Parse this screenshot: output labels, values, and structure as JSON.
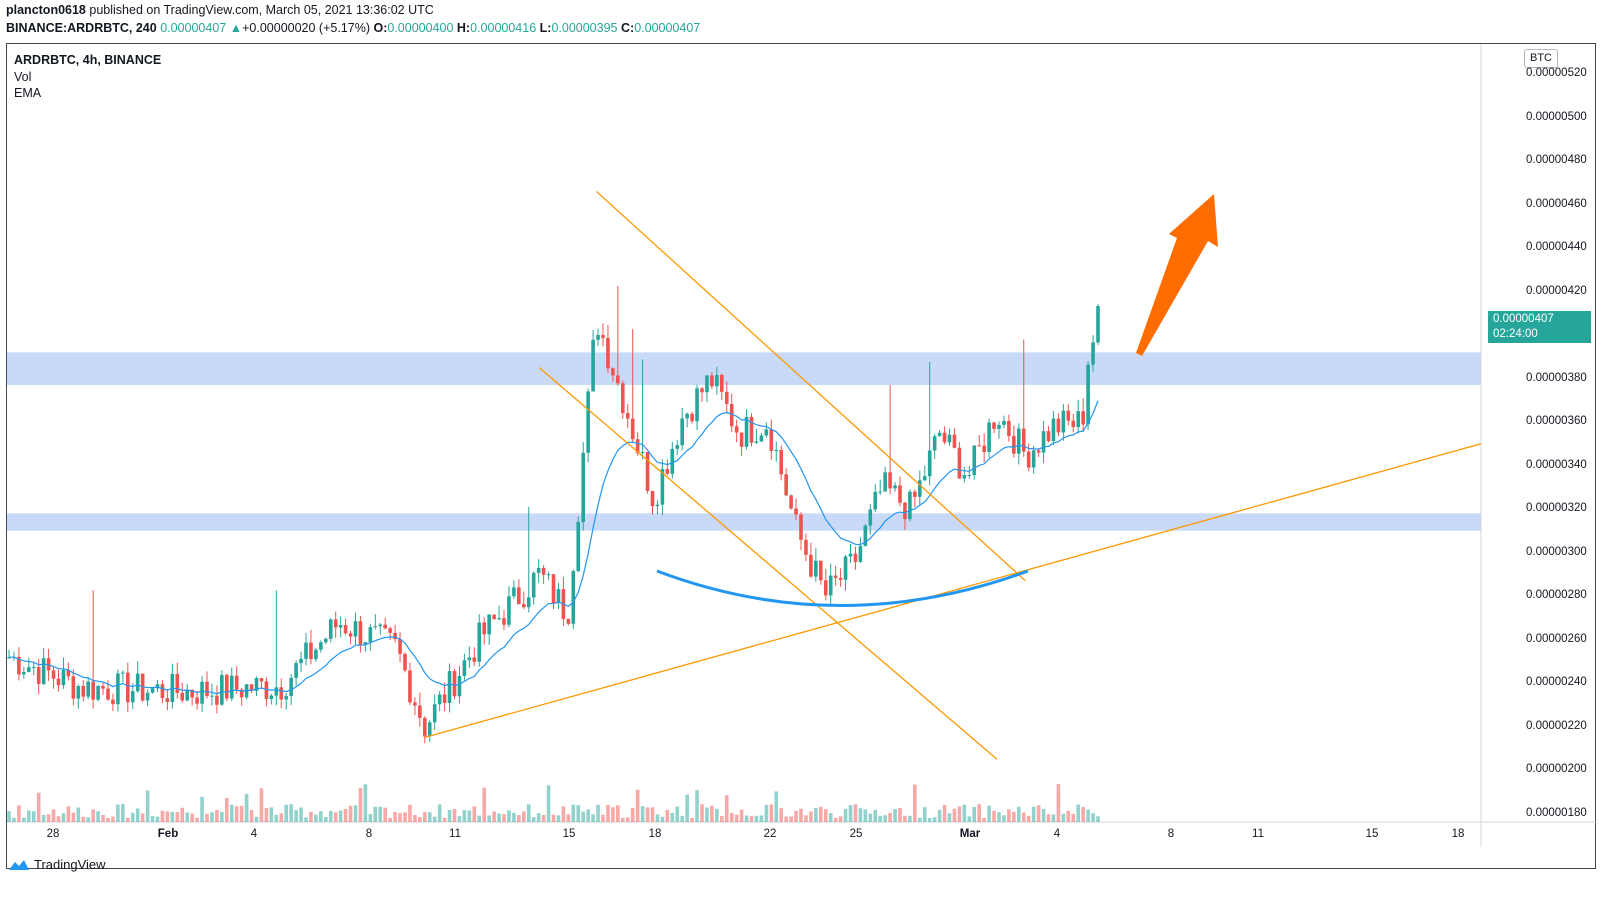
{
  "header": {
    "author": "plancton0618",
    "published": "published on TradingView.com, March 05, 2021 13:36:02 UTC",
    "symbol": "BINANCE:ARDRBTC, 240",
    "last": "0.00000407",
    "change": "+0.00000020 (+5.17%)",
    "o_label": "O:",
    "o_value": "0.00000400",
    "h_label": "H:",
    "h_value": "0.00000416",
    "l_label": "L:",
    "l_value": "0.00000395",
    "c_label": "C:",
    "c_value": "0.00000407"
  },
  "legend": {
    "symbol": "ARDRBTC, 4h, BINANCE",
    "vol": "Vol",
    "ema": "EMA"
  },
  "price_axis": {
    "unit": "BTC",
    "ticks": [
      "0.00000520",
      "0.00000500",
      "0.00000480",
      "0.00000460",
      "0.00000440",
      "0.00000420",
      "0.00000380",
      "0.00000360",
      "0.00000340",
      "0.00000320",
      "0.00000300",
      "0.00000280",
      "0.00000260",
      "0.00000240",
      "0.00000220",
      "0.00000200",
      "0.00000180"
    ],
    "current_price": "0.00000407",
    "countdown": "02:24:00"
  },
  "time_axis": {
    "ticks": [
      {
        "label": "28",
        "bold": false
      },
      {
        "label": "Feb",
        "bold": true
      },
      {
        "label": "4",
        "bold": false
      },
      {
        "label": "8",
        "bold": false
      },
      {
        "label": "11",
        "bold": false
      },
      {
        "label": "15",
        "bold": false
      },
      {
        "label": "18",
        "bold": false
      },
      {
        "label": "22",
        "bold": false
      },
      {
        "label": "25",
        "bold": false
      },
      {
        "label": "Mar",
        "bold": true
      },
      {
        "label": "4",
        "bold": false
      },
      {
        "label": "8",
        "bold": false
      },
      {
        "label": "11",
        "bold": false
      },
      {
        "label": "15",
        "bold": false
      },
      {
        "label": "18",
        "bold": false
      }
    ]
  },
  "footer": {
    "brand": "TradingView"
  },
  "colors": {
    "up": "#26a69a",
    "down": "#ef5350",
    "ema": "#2196f3",
    "trend": "#ff9800",
    "zone": "#bbd1f7",
    "arrow": "#ff6d00",
    "curve": "#2196f3"
  },
  "chart_data": {
    "type": "candlestick",
    "ylim": [
      1.78e-06,
      5.3e-06
    ],
    "zones": [
      [
        3.77e-06,
        3.92e-06
      ],
      [
        3.1e-06,
        3.18e-06
      ]
    ],
    "trendlines": [
      {
        "from": [
          "Feb 9",
          2.15e-06
        ],
        "to": [
          "Mar 18+",
          3.5e-06
        ]
      },
      {
        "from": [
          "Feb 15",
          4.66e-06
        ],
        "to": [
          "Mar 2",
          2.87e-06
        ]
      },
      {
        "from": [
          "Feb 13",
          3.85e-06
        ],
        "to": [
          "Feb 29",
          2.05e-06
        ]
      }
    ],
    "anchors": [
      {
        "date": "Jan 26",
        "price": 2.52e-06
      },
      {
        "date": "Jan 29",
        "price": 2.38e-06
      },
      {
        "date": "Feb 1",
        "price": 2.36e-06
      },
      {
        "date": "Feb 4",
        "price": 2.39e-06
      },
      {
        "date": "Feb 6",
        "price": 2.68e-06
      },
      {
        "date": "Feb 8",
        "price": 2.56e-06
      },
      {
        "date": "Feb 9",
        "price": 2.2e-06
      },
      {
        "date": "Feb 11",
        "price": 2.62e-06
      },
      {
        "date": "Feb 13",
        "price": 2.9e-06
      },
      {
        "date": "Feb 14",
        "price": 2.72e-06
      },
      {
        "date": "Feb 15",
        "price": 4.08e-06
      },
      {
        "date": "Feb 16",
        "price": 3.68e-06
      },
      {
        "date": "Feb 17",
        "price": 3.25e-06
      },
      {
        "date": "Feb 18",
        "price": 3.62e-06
      },
      {
        "date": "Feb 19",
        "price": 3.8e-06
      },
      {
        "date": "Feb 20",
        "price": 3.55e-06
      },
      {
        "date": "Feb 21",
        "price": 3.6e-06
      },
      {
        "date": "Feb 22",
        "price": 3.1e-06
      },
      {
        "date": "Feb 23",
        "price": 2.8e-06
      },
      {
        "date": "Feb 24",
        "price": 2.95e-06
      },
      {
        "date": "Feb 25",
        "price": 3.3e-06
      },
      {
        "date": "Feb 26",
        "price": 3.2e-06
      },
      {
        "date": "Feb 27",
        "price": 3.55e-06
      },
      {
        "date": "Feb 28",
        "price": 3.35e-06
      },
      {
        "date": "Mar 1",
        "price": 3.65e-06
      },
      {
        "date": "Mar 2",
        "price": 3.45e-06
      },
      {
        "date": "Mar 3",
        "price": 3.58e-06
      },
      {
        "date": "Mar 4",
        "price": 3.6e-06
      },
      {
        "date": "Mar 5",
        "price": 3.85e-06
      },
      {
        "date": "Mar 5",
        "price": 4.07e-06
      }
    ]
  }
}
